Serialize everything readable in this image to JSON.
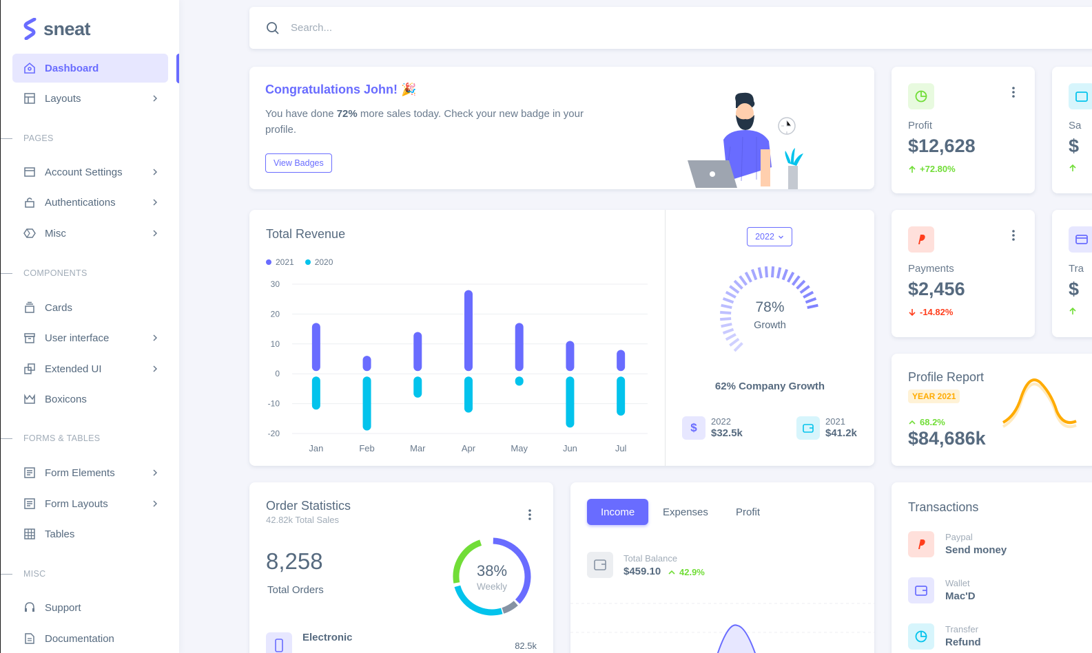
{
  "brand": {
    "name": "sneat"
  },
  "sidebar": {
    "items": [
      {
        "label": "Dashboard"
      },
      {
        "label": "Layouts"
      },
      {
        "label": "Account Settings"
      },
      {
        "label": "Authentications"
      },
      {
        "label": "Misc"
      },
      {
        "label": "Cards"
      },
      {
        "label": "User interface"
      },
      {
        "label": "Extended UI"
      },
      {
        "label": "Boxicons"
      },
      {
        "label": "Form Elements"
      },
      {
        "label": "Form Layouts"
      },
      {
        "label": "Tables"
      },
      {
        "label": "Support"
      },
      {
        "label": "Documentation"
      }
    ],
    "headers": [
      "PAGES",
      "COMPONENTS",
      "FORMS & TABLES",
      "MISC"
    ]
  },
  "search": {
    "placeholder": "Search..."
  },
  "congrats": {
    "title": "Congratulations John! 🎉",
    "text_before": "You have done ",
    "highlight": "72%",
    "text_after": " more sales today. Check your new badge in your profile.",
    "button": "View Badges"
  },
  "profit": {
    "label": "Profit",
    "value": "$12,628",
    "change": "+72.80%"
  },
  "sales": {
    "label": "Sa",
    "value": "$"
  },
  "payments": {
    "label": "Payments",
    "value": "$2,456",
    "change": "-14.82%"
  },
  "transactions_card": {
    "label": "Tra",
    "value": "$"
  },
  "revenue": {
    "title": "Total Revenue",
    "legend": [
      "2021",
      "2020"
    ],
    "year_button": "2022",
    "growth_percent": "78%",
    "growth_label": "Growth",
    "company_growth": "62% Company Growth",
    "mini": [
      {
        "year": "2022",
        "value": "$32.5k"
      },
      {
        "year": "2021",
        "value": "$41.2k"
      }
    ]
  },
  "chart_data": {
    "type": "bar",
    "title": "Total Revenue",
    "categories": [
      "Jan",
      "Feb",
      "Mar",
      "Apr",
      "May",
      "Jun",
      "Jul"
    ],
    "series": [
      {
        "name": "2021",
        "values": [
          17,
          6,
          14,
          28,
          17,
          11,
          8
        ]
      },
      {
        "name": "2020",
        "values": [
          -12,
          -19,
          -8,
          -13,
          -4,
          -18,
          -14
        ]
      }
    ],
    "yticks": [
      30,
      20,
      10,
      0,
      -10,
      -20
    ],
    "ylim": [
      -20,
      30
    ],
    "colors": [
      "#696cff",
      "#03c3ec"
    ],
    "legend_position": "top-left",
    "grid": true
  },
  "profile_report": {
    "title": "Profile Report",
    "badge": "YEAR 2021",
    "change": "68.2%",
    "value": "$84,686k"
  },
  "order_stats": {
    "title": "Order Statistics",
    "subtitle": "42.82k Total Sales",
    "value": "8,258",
    "label": "Total Orders",
    "donut_percent": "38%",
    "donut_label": "Weekly",
    "first_item": "Electronic",
    "first_value": "82.5k"
  },
  "income": {
    "tabs": [
      "Income",
      "Expenses",
      "Profit"
    ],
    "balance_label": "Total Balance",
    "balance_value": "$459.10",
    "balance_change": "42.9%"
  },
  "transactions": {
    "title": "Transactions",
    "items": [
      {
        "source": "Paypal",
        "desc": "Send money"
      },
      {
        "source": "Wallet",
        "desc": "Mac'D"
      },
      {
        "source": "Transfer",
        "desc": "Refund"
      }
    ]
  }
}
